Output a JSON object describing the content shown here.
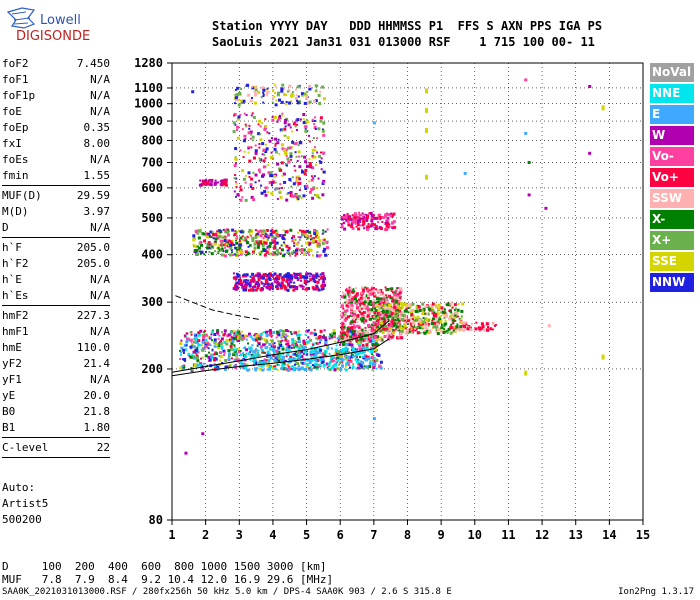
{
  "logo": {
    "line1": "Lowell",
    "line2": "DIGISONDE",
    "icon": "digisonde-logo-icon"
  },
  "header": {
    "labels_row": "Station YYYY DAY   DDD HHMMSS P1  FFS S AXN PPS IGA PS",
    "values_row": "SaoLuis 2021 Jan31 031 013000 RSF    1 715 100 00- 11"
  },
  "params_groups": [
    [
      {
        "name": "foF2",
        "value": "7.450"
      },
      {
        "name": "foF1",
        "value": "N/A"
      },
      {
        "name": "foF1p",
        "value": "N/A"
      },
      {
        "name": "foE",
        "value": "N/A"
      },
      {
        "name": "foEp",
        "value": "0.35"
      },
      {
        "name": "fxI",
        "value": "8.00"
      },
      {
        "name": "foEs",
        "value": "N/A"
      },
      {
        "name": "fmin",
        "value": "1.55"
      }
    ],
    [
      {
        "name": "MUF(D)",
        "value": "29.59"
      },
      {
        "name": "M(D)",
        "value": "3.97"
      },
      {
        "name": "D",
        "value": "N/A"
      }
    ],
    [
      {
        "name": "h`F",
        "value": "205.0"
      },
      {
        "name": "h`F2",
        "value": "205.0"
      },
      {
        "name": "h`E",
        "value": "N/A"
      },
      {
        "name": "h`Es",
        "value": "N/A"
      }
    ],
    [
      {
        "name": "hmF2",
        "value": "227.3"
      },
      {
        "name": "hmF1",
        "value": "N/A"
      },
      {
        "name": "hmE",
        "value": "110.0"
      },
      {
        "name": "yF2",
        "value": "21.4"
      },
      {
        "name": "yF1",
        "value": "N/A"
      },
      {
        "name": "yE",
        "value": "20.0"
      },
      {
        "name": "B0",
        "value": "21.8"
      },
      {
        "name": "B1",
        "value": "1.80"
      }
    ],
    [
      {
        "name": "C-level",
        "value": "22"
      }
    ]
  ],
  "auto_lines": [
    "Auto:",
    "Artist5",
    "500200"
  ],
  "legend": [
    {
      "label": "NoVal",
      "color": "#a0a0a0"
    },
    {
      "label": "NNE",
      "color": "#00e5ee"
    },
    {
      "label": "E",
      "color": "#3fa9ff"
    },
    {
      "label": "W",
      "color": "#b000b0"
    },
    {
      "label": "Vo-",
      "color": "#ff40a0"
    },
    {
      "label": "Vo+",
      "color": "#ff0040"
    },
    {
      "label": "SSW",
      "color": "#ffb0b0"
    },
    {
      "label": "X-",
      "color": "#008000"
    },
    {
      "label": "X+",
      "color": "#6ab04c"
    },
    {
      "label": "SSE",
      "color": "#d4d400"
    },
    {
      "label": "NNW",
      "color": "#2020e0"
    }
  ],
  "distance_table": {
    "d_row": "D     100  200  400  600  800 1000 1500 3000 [km]",
    "muf_row": "MUF   7.8  7.9  8.4  9.2 10.4 12.0 16.9 29.6 [MHz]"
  },
  "footer": {
    "info": "SAA0K_2021031013000.RSF / 280fx256h 50 kHz 5.0 km / DPS-4 SAA0K 903 / 2.6 S 315.8 E",
    "version": "Ion2Png 1.3.17"
  },
  "chart_data": {
    "type": "scatter",
    "title": "",
    "xlabel": "",
    "ylabel": "",
    "xlim": [
      1,
      15
    ],
    "ylim": [
      80,
      1280
    ],
    "y_scale": "log",
    "x_ticks": [
      1,
      2,
      3,
      4,
      5,
      6,
      7,
      8,
      9,
      10,
      11,
      12,
      13,
      14,
      15
    ],
    "y_ticks": [
      80,
      200,
      300,
      400,
      500,
      600,
      700,
      800,
      900,
      1000,
      1100,
      1280
    ],
    "grid": true,
    "legend_position": "right",
    "trace_curves": [
      {
        "name": "",
        "points": [
          [
            1.0,
            192
          ],
          [
            2,
            198
          ],
          [
            3,
            203
          ],
          [
            4,
            207
          ],
          [
            5,
            212
          ],
          [
            6,
            218
          ],
          [
            7,
            226
          ],
          [
            7.45,
            240
          ]
        ]
      },
      {
        "name": "",
        "points": [
          [
            1.0,
            196
          ],
          [
            2,
            203
          ],
          [
            3,
            210
          ],
          [
            4,
            218
          ],
          [
            5,
            225
          ],
          [
            6,
            235
          ],
          [
            7,
            248
          ],
          [
            7.45,
            268
          ]
        ]
      },
      {
        "name": "",
        "points": [
          [
            1.1,
            312
          ],
          [
            1.6,
            300
          ],
          [
            2.2,
            286
          ],
          [
            3,
            276
          ],
          [
            3.6,
            270
          ]
        ]
      }
    ],
    "echo_clusters": [
      {
        "x": [
          1.2,
          7.2
        ],
        "y": [
          200,
          255
        ],
        "n": 900,
        "colors": [
          "#ff0040",
          "#ff40a0",
          "#2020e0",
          "#00e5ee",
          "#008000",
          "#6ab04c",
          "#d4d400",
          "#b000b0",
          "#3fa9ff"
        ]
      },
      {
        "x": [
          6.0,
          7.8
        ],
        "y": [
          240,
          330
        ],
        "n": 600,
        "colors": [
          "#ff0040",
          "#ff40a0",
          "#008000",
          "#ffb0b0"
        ]
      },
      {
        "x": [
          7.0,
          9.6
        ],
        "y": [
          250,
          300
        ],
        "n": 450,
        "colors": [
          "#6ab04c",
          "#008000",
          "#ff0040",
          "#ffb0b0",
          "#d4d400"
        ]
      },
      {
        "x": [
          9.6,
          10.6
        ],
        "y": [
          255,
          268
        ],
        "n": 40,
        "colors": [
          "#ff0040",
          "#ffb0b0"
        ]
      },
      {
        "x": [
          2.8,
          5.5
        ],
        "y": [
          325,
          360
        ],
        "n": 300,
        "colors": [
          "#2020e0",
          "#b000b0",
          "#ff0040"
        ]
      },
      {
        "x": [
          1.6,
          5.6
        ],
        "y": [
          400,
          470
        ],
        "n": 450,
        "colors": [
          "#ff0040",
          "#6ab04c",
          "#d4d400",
          "#2020e0",
          "#ff40a0",
          "#008000"
        ]
      },
      {
        "x": [
          6.0,
          7.6
        ],
        "y": [
          470,
          520
        ],
        "n": 150,
        "colors": [
          "#ff0040",
          "#ff40a0",
          "#b000b0"
        ]
      },
      {
        "x": [
          2.8,
          5.5
        ],
        "y": [
          560,
          950
        ],
        "n": 350,
        "colors": [
          "#b000b0",
          "#ff0040",
          "#2020e0",
          "#6ab04c",
          "#ff40a0",
          "#d4d400"
        ]
      },
      {
        "x": [
          1.8,
          2.6
        ],
        "y": [
          615,
          635
        ],
        "n": 60,
        "colors": [
          "#ff0040",
          "#b000b0"
        ]
      },
      {
        "x": [
          2.8,
          5.5
        ],
        "y": [
          1000,
          1130
        ],
        "n": 120,
        "colors": [
          "#6ab04c",
          "#d4d400",
          "#2020e0",
          "#ffb0b0"
        ]
      },
      {
        "x": [
          3.0,
          7.0
        ],
        "y": [
          200,
          230
        ],
        "n": 200,
        "colors": [
          "#00e5ee",
          "#3fa9ff"
        ]
      }
    ],
    "isolated_points": [
      {
        "x": 1.6,
        "y": 1075,
        "color": "#2020e0"
      },
      {
        "x": 8.55,
        "y": 1080,
        "color": "#d4d400"
      },
      {
        "x": 8.55,
        "y": 960,
        "color": "#d4d400"
      },
      {
        "x": 8.55,
        "y": 850,
        "color": "#d4d400"
      },
      {
        "x": 8.55,
        "y": 640,
        "color": "#d4d400"
      },
      {
        "x": 7.0,
        "y": 890,
        "color": "#3fa9ff"
      },
      {
        "x": 11.5,
        "y": 1155,
        "color": "#ff40a0"
      },
      {
        "x": 11.5,
        "y": 835,
        "color": "#3fa9ff"
      },
      {
        "x": 11.6,
        "y": 575,
        "color": "#b000b0"
      },
      {
        "x": 11.6,
        "y": 700,
        "color": "#008000"
      },
      {
        "x": 12.1,
        "y": 530,
        "color": "#b000b0"
      },
      {
        "x": 13.4,
        "y": 1110,
        "color": "#b000b0"
      },
      {
        "x": 13.4,
        "y": 740,
        "color": "#b000b0"
      },
      {
        "x": 13.8,
        "y": 975,
        "color": "#d4d400"
      },
      {
        "x": 13.8,
        "y": 215,
        "color": "#d4d400"
      },
      {
        "x": 11.5,
        "y": 195,
        "color": "#d4d400"
      },
      {
        "x": 7.0,
        "y": 148,
        "color": "#3fa9ff"
      },
      {
        "x": 1.9,
        "y": 135,
        "color": "#b000b0"
      },
      {
        "x": 1.4,
        "y": 120,
        "color": "#b000b0"
      },
      {
        "x": 12.2,
        "y": 260,
        "color": "#ffb0b0"
      },
      {
        "x": 9.7,
        "y": 655,
        "color": "#3fa9ff"
      }
    ]
  }
}
